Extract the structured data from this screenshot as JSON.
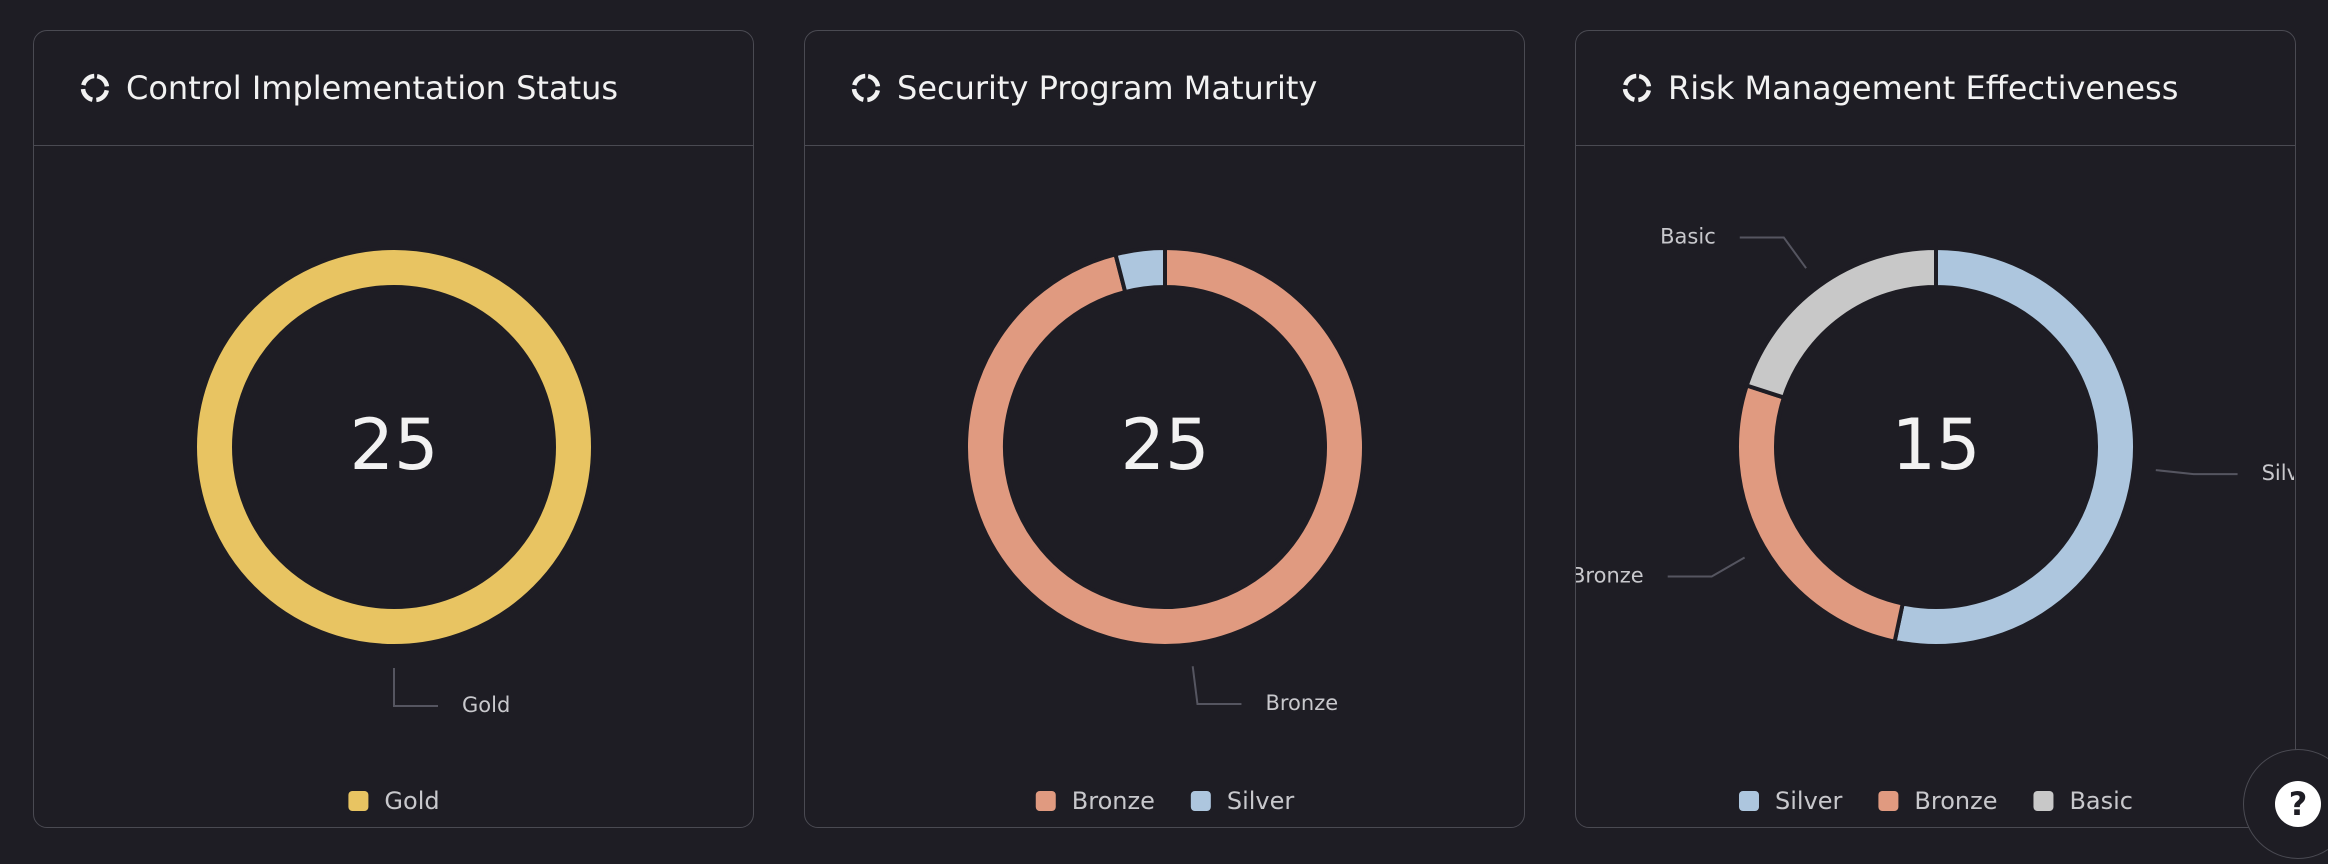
{
  "chart_data": [
    {
      "type": "donut",
      "title": "Control Implementation Status",
      "center_label": 25,
      "categories": [
        "Gold"
      ],
      "values": [
        25
      ],
      "colors": [
        "#e8c462"
      ]
    },
    {
      "type": "donut",
      "title": "Security Program Maturity",
      "center_label": 25,
      "categories": [
        "Bronze",
        "Silver"
      ],
      "values": [
        24,
        1
      ],
      "colors": [
        "#e09a80",
        "#adc6de"
      ]
    },
    {
      "type": "donut",
      "title": "Risk Management Effectiveness",
      "center_label": 15,
      "categories": [
        "Silver",
        "Bronze",
        "Basic"
      ],
      "values": [
        8,
        4,
        3
      ],
      "colors": [
        "#adc6de",
        "#e09a80",
        "#c8c8c8"
      ]
    }
  ]
}
